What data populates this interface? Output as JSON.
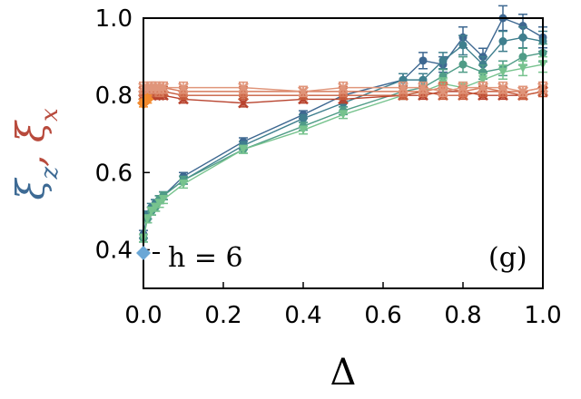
{
  "chart_data": {
    "type": "line",
    "title": "",
    "xlabel": "Δ",
    "ylabel_parts": [
      {
        "text": "ξ",
        "sub": "z",
        "color": "#3d6a94"
      },
      {
        "text": ", ",
        "sub": "",
        "color": "#b84a3c"
      },
      {
        "text": "ξ",
        "sub": "x",
        "color": "#b84a3c"
      }
    ],
    "xlim": [
      0.0,
      1.0
    ],
    "ylim": [
      0.3,
      1.0
    ],
    "xticks": [
      "0.0",
      "0.2",
      "0.4",
      "0.6",
      "0.8",
      "1.0"
    ],
    "yticks": [
      "0.4",
      "0.6",
      "0.8",
      "1.0"
    ],
    "xtick_values": [
      0.0,
      0.2,
      0.4,
      0.6,
      0.8,
      1.0
    ],
    "ytick_values": [
      0.4,
      0.6,
      0.8,
      1.0
    ],
    "annotations": {
      "legend": "h = 6",
      "panel": "(g)"
    },
    "legend_color": "#6aa7d6",
    "series": [
      {
        "group": "xi_z",
        "color": "#3e6891",
        "marker": "circle",
        "x": [
          0.0,
          0.01,
          0.02,
          0.03,
          0.04,
          0.05,
          0.1,
          0.25,
          0.4,
          0.5,
          0.65,
          0.7,
          0.75,
          0.8,
          0.85,
          0.9,
          0.95,
          1.0
        ],
        "y": [
          0.44,
          0.49,
          0.5,
          0.52,
          0.53,
          0.54,
          0.59,
          0.68,
          0.75,
          0.8,
          0.84,
          0.89,
          0.88,
          0.95,
          0.9,
          1.0,
          0.98,
          0.95
        ]
      },
      {
        "group": "xi_z",
        "color": "#3f7f8e",
        "marker": "circle",
        "x": [
          0.0,
          0.01,
          0.02,
          0.03,
          0.04,
          0.05,
          0.1,
          0.25,
          0.4,
          0.5,
          0.65,
          0.7,
          0.75,
          0.8,
          0.85,
          0.9,
          0.95,
          1.0
        ],
        "y": [
          0.43,
          0.49,
          0.51,
          0.52,
          0.53,
          0.54,
          0.58,
          0.67,
          0.74,
          0.78,
          0.84,
          0.84,
          0.89,
          0.93,
          0.88,
          0.94,
          0.95,
          0.94
        ]
      },
      {
        "group": "xi_z",
        "color": "#4f9c87",
        "marker": "circle",
        "x": [
          0.0,
          0.01,
          0.02,
          0.03,
          0.04,
          0.05,
          0.1,
          0.25,
          0.4,
          0.5,
          0.65,
          0.7,
          0.75,
          0.8,
          0.85,
          0.9,
          0.95,
          1.0
        ],
        "y": [
          0.43,
          0.48,
          0.5,
          0.51,
          0.53,
          0.54,
          0.58,
          0.66,
          0.72,
          0.76,
          0.81,
          0.82,
          0.85,
          0.88,
          0.86,
          0.87,
          0.9,
          0.91
        ]
      },
      {
        "group": "xi_z",
        "color": "#77c38e",
        "marker": "triangle-down",
        "x": [
          0.0,
          0.01,
          0.02,
          0.03,
          0.04,
          0.05,
          0.1,
          0.25,
          0.4,
          0.5,
          0.65,
          0.7,
          0.75,
          0.8,
          0.85,
          0.9,
          0.95,
          1.0
        ],
        "y": [
          0.43,
          0.48,
          0.5,
          0.51,
          0.52,
          0.53,
          0.57,
          0.66,
          0.71,
          0.75,
          0.8,
          0.81,
          0.83,
          0.82,
          0.84,
          0.86,
          0.87,
          0.88
        ]
      },
      {
        "group": "xi_x",
        "color": "#b8432e",
        "marker": "x",
        "x": [
          0.0,
          0.01,
          0.02,
          0.03,
          0.04,
          0.05,
          0.1,
          0.25,
          0.4,
          0.5,
          0.65,
          0.7,
          0.75,
          0.8,
          0.85,
          0.9,
          0.95,
          1.0
        ],
        "y": [
          0.79,
          0.8,
          0.8,
          0.8,
          0.8,
          0.8,
          0.79,
          0.78,
          0.79,
          0.79,
          0.8,
          0.8,
          0.81,
          0.81,
          0.8,
          0.8,
          0.8,
          0.81
        ]
      },
      {
        "group": "xi_x",
        "color": "#c75d3e",
        "marker": "x",
        "x": [
          0.0,
          0.01,
          0.02,
          0.03,
          0.04,
          0.05,
          0.1,
          0.25,
          0.4,
          0.5,
          0.65,
          0.7,
          0.75,
          0.8,
          0.85,
          0.9,
          0.95,
          1.0
        ],
        "y": [
          0.8,
          0.81,
          0.81,
          0.81,
          0.81,
          0.81,
          0.8,
          0.8,
          0.8,
          0.8,
          0.8,
          0.81,
          0.8,
          0.8,
          0.81,
          0.81,
          0.8,
          0.81
        ]
      },
      {
        "group": "xi_x",
        "color": "#d6795a",
        "marker": "x",
        "x": [
          0.0,
          0.01,
          0.02,
          0.03,
          0.04,
          0.05,
          0.1,
          0.25,
          0.4,
          0.5,
          0.65,
          0.7,
          0.75,
          0.8,
          0.85,
          0.9,
          0.95,
          1.0
        ],
        "y": [
          0.81,
          0.81,
          0.82,
          0.82,
          0.81,
          0.82,
          0.81,
          0.81,
          0.81,
          0.81,
          0.81,
          0.81,
          0.82,
          0.81,
          0.82,
          0.81,
          0.81,
          0.82
        ]
      },
      {
        "group": "xi_x",
        "color": "#e0957a",
        "marker": "x",
        "x": [
          0.0,
          0.01,
          0.02,
          0.03,
          0.04,
          0.05,
          0.1,
          0.25,
          0.4,
          0.5,
          0.65,
          0.7,
          0.75,
          0.8,
          0.85,
          0.9,
          0.95,
          1.0
        ],
        "y": [
          0.82,
          0.82,
          0.82,
          0.82,
          0.82,
          0.82,
          0.82,
          0.82,
          0.81,
          0.82,
          0.82,
          0.82,
          0.81,
          0.82,
          0.82,
          0.82,
          0.81,
          0.82
        ]
      },
      {
        "group": "xi_x",
        "color": "#f28a2e",
        "marker": "diamond",
        "x": [
          0.0,
          0.01
        ],
        "y": [
          0.78,
          0.79
        ]
      }
    ]
  }
}
